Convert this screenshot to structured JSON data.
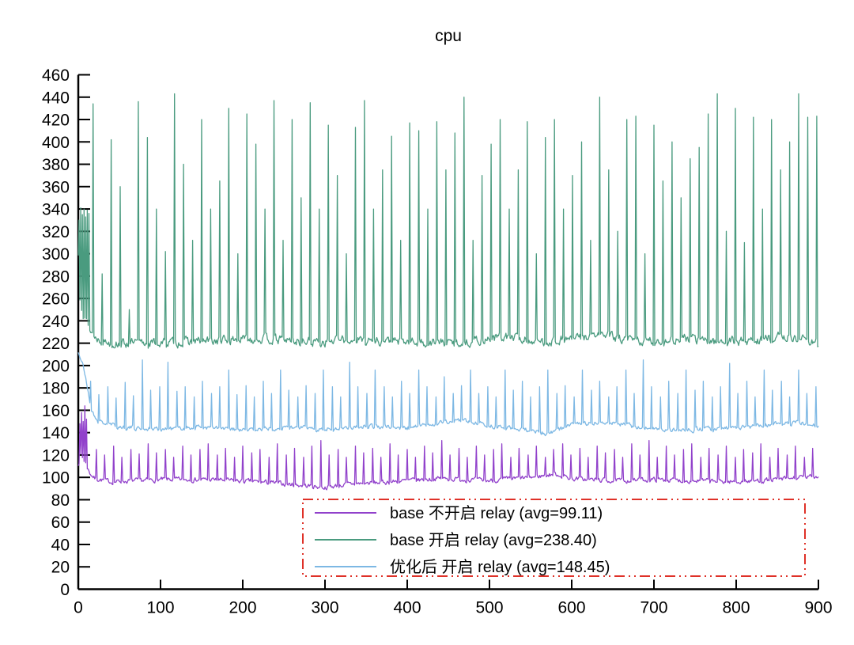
{
  "title": "cpu",
  "chart_data": {
    "type": "line",
    "title": "cpu",
    "xlabel": "",
    "ylabel": "",
    "xlim": [
      0,
      900
    ],
    "ylim": [
      0,
      460
    ],
    "xticks": [
      0,
      100,
      200,
      300,
      400,
      500,
      600,
      700,
      800,
      900
    ],
    "yticks": [
      0,
      20,
      40,
      60,
      80,
      100,
      120,
      140,
      160,
      180,
      200,
      220,
      240,
      260,
      280,
      300,
      320,
      340,
      360,
      380,
      400,
      420,
      440,
      460
    ],
    "grid": false,
    "background": "#ffffff",
    "axis_color": "#000000",
    "legend": {
      "position": "inside-bottom-center",
      "border_color": "#df3128",
      "border_style": "dash-dot-dot"
    },
    "series": [
      {
        "name": "base 不开启 relay (avg=99.11)",
        "avg": 99.11,
        "color": "#9141cb",
        "seed": 7,
        "noise": 3.5,
        "baseline": [
          [
            0,
            112
          ],
          [
            3,
            120
          ],
          [
            8,
            114
          ],
          [
            14,
            104
          ],
          [
            20,
            99
          ],
          [
            40,
            96
          ],
          [
            100,
            98
          ],
          [
            160,
            98
          ],
          [
            220,
            96
          ],
          [
            270,
            93
          ],
          [
            300,
            91
          ],
          [
            330,
            94
          ],
          [
            380,
            96
          ],
          [
            440,
            99
          ],
          [
            500,
            97
          ],
          [
            550,
            100
          ],
          [
            580,
            103
          ],
          [
            600,
            99
          ],
          [
            650,
            97
          ],
          [
            700,
            98
          ],
          [
            750,
            97
          ],
          [
            800,
            96
          ],
          [
            850,
            98
          ],
          [
            880,
            100
          ],
          [
            900,
            101
          ]
        ],
        "spike_x": [
          2,
          4,
          6,
          8,
          10,
          22,
          32,
          43,
          53,
          64,
          74,
          85,
          95,
          106,
          116,
          127,
          137,
          148,
          158,
          169,
          179,
          190,
          200,
          211,
          221,
          232,
          242,
          253,
          263,
          274,
          284,
          295,
          305,
          316,
          326,
          337,
          347,
          358,
          368,
          379,
          389,
          400,
          410,
          421,
          431,
          442,
          452,
          463,
          473,
          484,
          494,
          505,
          515,
          526,
          536,
          547,
          557,
          568,
          578,
          589,
          599,
          610,
          620,
          631,
          641,
          652,
          662,
          673,
          683,
          694,
          704,
          715,
          725,
          736,
          746,
          757,
          767,
          778,
          788,
          799,
          809,
          820,
          830,
          841,
          851,
          862,
          872,
          883,
          893
        ],
        "spike_h": [
          148,
          158,
          150,
          164,
          152,
          125,
          120,
          128,
          118,
          125,
          121,
          130,
          122,
          125,
          118,
          128,
          120,
          125,
          130,
          120,
          126,
          118,
          128,
          122,
          125,
          118,
          130,
          120,
          126,
          118,
          128,
          133,
          120,
          125,
          118,
          128,
          122,
          126,
          118,
          130,
          120,
          125,
          118,
          128,
          122,
          133,
          120,
          126,
          118,
          128,
          120,
          125,
          130,
          118,
          126,
          120,
          128,
          118,
          125,
          130,
          120,
          126,
          118,
          128,
          122,
          125,
          118,
          130,
          120,
          133,
          118,
          128,
          120,
          125,
          130,
          118,
          126,
          120,
          128,
          118,
          125,
          122,
          130,
          118,
          126,
          120,
          128,
          118,
          126
        ]
      },
      {
        "name": "base 开启 relay (avg=238.40)",
        "avg": 238.4,
        "color": "#4a9b7f",
        "seed": 13,
        "noise": 7,
        "baseline": [
          [
            0,
            298
          ],
          [
            2,
            262
          ],
          [
            6,
            248
          ],
          [
            10,
            240
          ],
          [
            14,
            232
          ],
          [
            20,
            225
          ],
          [
            40,
            220
          ],
          [
            100,
            220
          ],
          [
            160,
            222
          ],
          [
            220,
            224
          ],
          [
            280,
            221
          ],
          [
            340,
            223
          ],
          [
            400,
            221
          ],
          [
            460,
            220
          ],
          [
            520,
            226
          ],
          [
            560,
            221
          ],
          [
            600,
            224
          ],
          [
            640,
            228
          ],
          [
            660,
            223
          ],
          [
            700,
            221
          ],
          [
            740,
            224
          ],
          [
            780,
            221
          ],
          [
            820,
            222
          ],
          [
            860,
            226
          ],
          [
            900,
            221
          ]
        ],
        "spike_x": [
          1,
          3,
          5,
          7,
          9,
          11,
          13,
          18,
          29,
          40,
          51,
          62,
          73,
          84,
          95,
          106,
          117,
          128,
          139,
          150,
          161,
          172,
          183,
          194,
          205,
          216,
          227,
          238,
          249,
          260,
          271,
          282,
          293,
          304,
          315,
          326,
          337,
          348,
          359,
          370,
          381,
          392,
          403,
          414,
          425,
          436,
          447,
          458,
          469,
          480,
          491,
          502,
          513,
          524,
          535,
          546,
          557,
          568,
          579,
          590,
          601,
          612,
          623,
          634,
          645,
          656,
          667,
          678,
          689,
          700,
          711,
          722,
          733,
          744,
          755,
          766,
          777,
          788,
          799,
          810,
          821,
          832,
          843,
          854,
          865,
          876,
          887,
          898
        ],
        "spike_h": [
          330,
          341,
          335,
          340,
          333,
          339,
          336,
          434,
          282,
          402,
          360,
          250,
          436,
          404,
          340,
          302,
          443,
          380,
          312,
          420,
          340,
          365,
          430,
          300,
          425,
          398,
          340,
          437,
          312,
          420,
          350,
          435,
          340,
          415,
          370,
          300,
          413,
          437,
          340,
          375,
          405,
          312,
          417,
          410,
          340,
          418,
          375,
          408,
          440,
          312,
          370,
          398,
          420,
          340,
          375,
          418,
          300,
          404,
          420,
          340,
          370,
          400,
          312,
          440,
          375,
          320,
          420,
          423,
          300,
          415,
          365,
          400,
          350,
          385,
          395,
          425,
          443,
          320,
          430,
          310,
          422,
          340,
          420,
          375,
          400,
          443,
          422,
          423
        ]
      },
      {
        "name": "优化后 开启 relay (avg=148.45)",
        "avg": 148.45,
        "color": "#7db8e4",
        "seed": 21,
        "noise": 3.5,
        "baseline": [
          [
            0,
            212
          ],
          [
            5,
            202
          ],
          [
            10,
            185
          ],
          [
            16,
            160
          ],
          [
            24,
            150
          ],
          [
            50,
            145
          ],
          [
            100,
            143
          ],
          [
            150,
            145
          ],
          [
            200,
            142
          ],
          [
            250,
            145
          ],
          [
            300,
            143
          ],
          [
            350,
            146
          ],
          [
            400,
            144
          ],
          [
            440,
            149
          ],
          [
            470,
            151
          ],
          [
            500,
            146
          ],
          [
            540,
            143
          ],
          [
            570,
            139
          ],
          [
            600,
            147
          ],
          [
            640,
            150
          ],
          [
            680,
            145
          ],
          [
            720,
            142
          ],
          [
            760,
            143
          ],
          [
            800,
            144
          ],
          [
            840,
            147
          ],
          [
            870,
            149
          ],
          [
            900,
            146
          ]
        ],
        "spike_x": [
          15,
          25,
          36,
          46,
          57,
          67,
          78,
          88,
          99,
          109,
          120,
          130,
          141,
          151,
          162,
          172,
          183,
          193,
          204,
          214,
          225,
          235,
          246,
          256,
          267,
          277,
          288,
          298,
          309,
          319,
          330,
          340,
          351,
          361,
          372,
          382,
          393,
          403,
          414,
          424,
          435,
          445,
          456,
          466,
          477,
          487,
          498,
          508,
          519,
          529,
          540,
          550,
          561,
          571,
          582,
          592,
          603,
          613,
          624,
          634,
          645,
          655,
          666,
          676,
          687,
          697,
          708,
          718,
          729,
          739,
          750,
          760,
          771,
          781,
          792,
          802,
          813,
          823,
          834,
          844,
          855,
          865,
          876,
          886,
          897
        ],
        "spike_h": [
          186,
          174,
          181,
          171,
          185,
          173,
          205,
          178,
          181,
          203,
          177,
          181,
          172,
          186,
          175,
          181,
          196,
          174,
          182,
          172,
          186,
          175,
          196,
          178,
          172,
          182,
          175,
          196,
          181,
          172,
          203,
          181,
          175,
          196,
          181,
          172,
          186,
          175,
          196,
          181,
          172,
          190,
          175,
          182,
          196,
          175,
          181,
          172,
          196,
          178,
          186,
          172,
          181,
          196,
          175,
          182,
          172,
          196,
          178,
          186,
          172,
          181,
          196,
          175,
          205,
          181,
          172,
          186,
          175,
          196,
          178,
          186,
          172,
          181,
          202,
          175,
          186,
          172,
          196,
          178,
          186,
          172,
          196,
          175,
          181
        ]
      }
    ]
  }
}
